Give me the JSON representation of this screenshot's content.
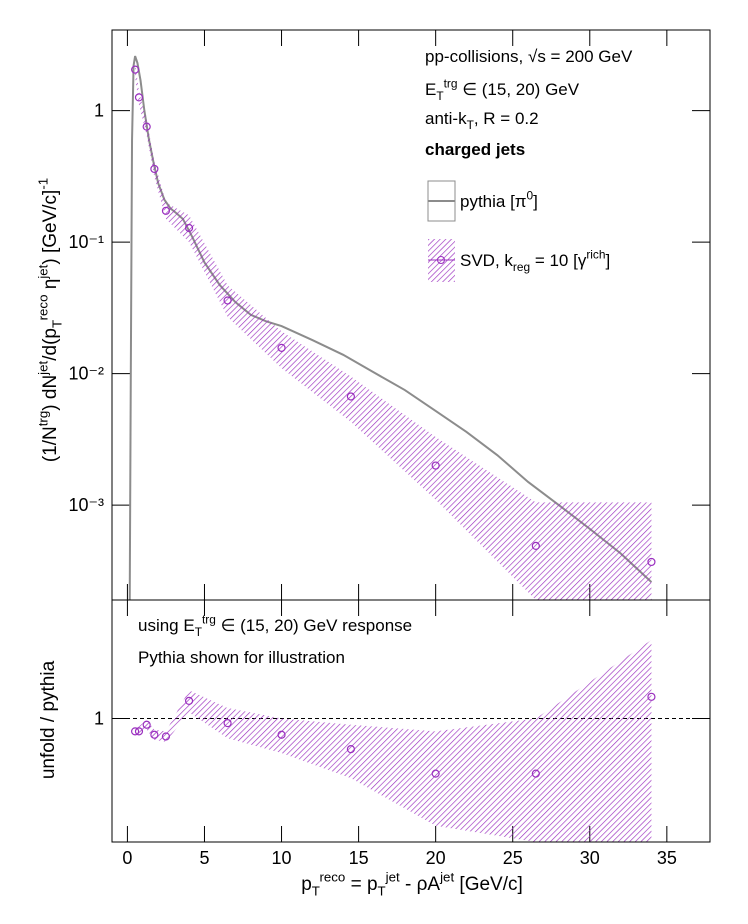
{
  "chart_data": [
    {
      "type": "line",
      "title_lines": [
        [
          {
            "t": "pp-collisions, √s = 200 GeV"
          }
        ],
        [
          {
            "t": "E"
          },
          {
            "t": "T",
            "s": "sub"
          },
          {
            "t": "trg",
            "s": "sup"
          },
          {
            "t": " ∈ (15, 20) GeV"
          }
        ],
        [
          {
            "t": "anti-k"
          },
          {
            "t": "T",
            "s": "sub"
          },
          {
            "t": ", R = 0.2"
          }
        ],
        [
          {
            "t": "charged jets",
            "s": "bold"
          }
        ]
      ],
      "ylabel": [
        {
          "t": "(1/N"
        },
        {
          "t": "trg",
          "s": "sup"
        },
        {
          "t": ") dN"
        },
        {
          "t": "jet",
          "s": "sup"
        },
        {
          "t": "/d(p"
        },
        {
          "t": "T",
          "s": "sub"
        },
        {
          "t": "reco",
          "s": "sup"
        },
        {
          "t": " η"
        },
        {
          "t": "jet",
          "s": "sup"
        },
        {
          "t": ") [GeV/c]"
        },
        {
          "t": "-1",
          "s": "sup"
        }
      ],
      "xlim": [
        -1,
        37.8
      ],
      "xticks": [
        0,
        5,
        10,
        15,
        20,
        25,
        30,
        35
      ],
      "ylim": [
        0.00019,
        4.1
      ],
      "log_y": true,
      "yticks": [
        {
          "value": 0.001,
          "label": "10⁻³"
        },
        {
          "value": 0.01,
          "label": "10⁻²"
        },
        {
          "value": 0.1,
          "label": "10⁻¹"
        },
        1
      ],
      "series": [
        {
          "name": [
            {
              "t": "pythia [π"
            },
            {
              "t": "0",
              "s": "sup"
            },
            {
              "t": "]"
            }
          ],
          "color": "#8c8c8c",
          "x": [
            0.15,
            0.22,
            0.3,
            0.4,
            0.5,
            0.65,
            0.85,
            1.1,
            1.4,
            1.7,
            2.0,
            2.4,
            2.8,
            3.2,
            3.6,
            4.2,
            5,
            6,
            7,
            8,
            9,
            10,
            12,
            14,
            16,
            18,
            20,
            22,
            24,
            26,
            28,
            30,
            32,
            34
          ],
          "values": [
            0.00019,
            0.01,
            0.6,
            2.2,
            2.6,
            2.3,
            1.7,
            1.0,
            0.6,
            0.4,
            0.28,
            0.21,
            0.18,
            0.165,
            0.15,
            0.11,
            0.07,
            0.047,
            0.035,
            0.028,
            0.025,
            0.023,
            0.018,
            0.0139,
            0.0102,
            0.0075,
            0.0052,
            0.0036,
            0.0024,
            0.0015,
            0.001,
            0.00066,
            0.00043,
            0.00026
          ]
        },
        {
          "name": [
            {
              "t": "SVD, k"
            },
            {
              "t": "reg",
              "s": "sub"
            },
            {
              "t": " = 10 [γ"
            },
            {
              "t": "rich",
              "s": "sup"
            },
            {
              "t": "]"
            }
          ],
          "color": "#9a2fbf",
          "marker": "circle",
          "x": [
            0.5,
            0.75,
            1.25,
            1.75,
            2.5,
            4,
            6.5,
            10,
            14.5,
            20,
            26.5,
            34
          ],
          "values": [
            2.05,
            1.26,
            0.755,
            0.36,
            0.173,
            0.128,
            0.036,
            0.0157,
            0.0067,
            0.002,
            0.00049,
            0.00037
          ],
          "band_low": [
            1.8,
            1.1,
            0.65,
            0.31,
            0.15,
            0.1,
            0.027,
            0.011,
            0.0043,
            0.0011,
            0.00019,
            0.00019
          ],
          "band_high": [
            2.3,
            1.4,
            0.85,
            0.41,
            0.2,
            0.16,
            0.047,
            0.021,
            0.0095,
            0.0033,
            0.00105,
            0.00105
          ]
        }
      ]
    },
    {
      "type": "ratio",
      "annotations": [
        [
          {
            "t": "using E"
          },
          {
            "t": "T",
            "s": "sub"
          },
          {
            "t": "trg",
            "s": "sup"
          },
          {
            "t": " ∈ (15, 20) GeV response"
          }
        ],
        [
          {
            "t": "Pythia shown for illustration"
          }
        ]
      ],
      "ylabel": [
        {
          "t": "unfold / pythia"
        }
      ],
      "xlabel": [
        {
          "t": "p"
        },
        {
          "t": "T",
          "s": "sub"
        },
        {
          "t": "reco",
          "s": "sup"
        },
        {
          "t": " = p"
        },
        {
          "t": "T",
          "s": "sub"
        },
        {
          "t": "jet",
          "s": "sup"
        },
        {
          "t": " - ρA"
        },
        {
          "t": "jet",
          "s": "sup"
        },
        {
          "t": " [GeV/c]"
        }
      ],
      "xlim": [
        -1,
        37.8
      ],
      "xticks": [
        0,
        5,
        10,
        15,
        20,
        25,
        30,
        35
      ],
      "ylim": [
        0.45,
        2.15
      ],
      "log_y": true,
      "yticks": [
        1
      ],
      "reference": 1,
      "series": [
        {
          "color": "#9a2fbf",
          "marker": "circle",
          "x": [
            0.5,
            0.75,
            1.25,
            1.75,
            2.5,
            4,
            6.5,
            10,
            14.5,
            20,
            26.5,
            34
          ],
          "values": [
            0.92,
            0.92,
            0.96,
            0.9,
            0.89,
            1.12,
            0.97,
            0.9,
            0.82,
            0.7,
            0.7,
            1.15
          ],
          "band_low": [
            0.9,
            0.9,
            0.93,
            0.87,
            0.86,
            1.04,
            0.88,
            0.8,
            0.68,
            0.5,
            0.45,
            0.45
          ],
          "band_high": [
            0.95,
            0.95,
            0.99,
            0.93,
            0.92,
            1.2,
            1.07,
            1.0,
            0.96,
            0.92,
            1.0,
            1.66
          ]
        }
      ]
    }
  ]
}
